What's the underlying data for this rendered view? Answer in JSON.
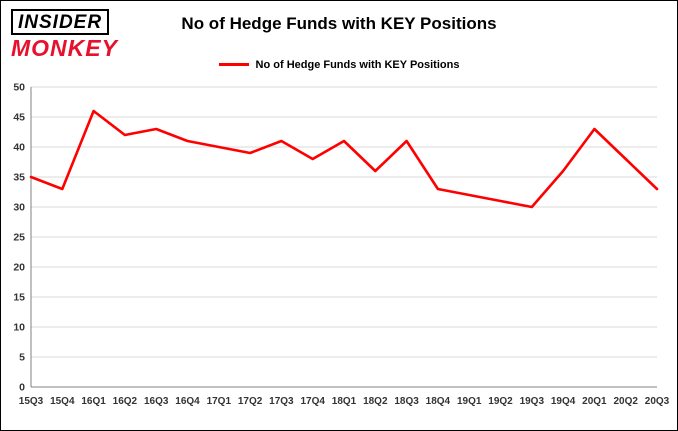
{
  "logo": {
    "line1": "INSIDER",
    "line2": "MONKEY",
    "accent_color": "#e8112d"
  },
  "header": {
    "title": "No of Hedge Funds with KEY Positions"
  },
  "legend": {
    "label": "No of Hedge Funds with KEY Positions",
    "color": "#ff0000"
  },
  "chart_data": {
    "type": "line",
    "title": "No of Hedge Funds with KEY Positions",
    "categories": [
      "15Q3",
      "15Q4",
      "16Q1",
      "16Q2",
      "16Q3",
      "16Q4",
      "17Q1",
      "17Q2",
      "17Q3",
      "17Q4",
      "18Q1",
      "18Q2",
      "18Q3",
      "18Q4",
      "19Q1",
      "19Q2",
      "19Q3",
      "19Q4",
      "20Q1",
      "20Q2",
      "20Q3"
    ],
    "values": [
      35,
      33,
      46,
      42,
      43,
      41,
      40,
      39,
      41,
      38,
      41,
      36,
      41,
      33,
      32,
      31,
      30,
      36,
      43,
      38,
      33
    ],
    "xlabel": "",
    "ylabel": "",
    "ylim": [
      0,
      50
    ],
    "ytick_step": 5,
    "grid": "horizontal",
    "grid_color": "#d9d9d9",
    "axis_color": "#808080",
    "tick_label_color": "#333333",
    "line_color": "#ff0000",
    "legend_position": "top"
  }
}
